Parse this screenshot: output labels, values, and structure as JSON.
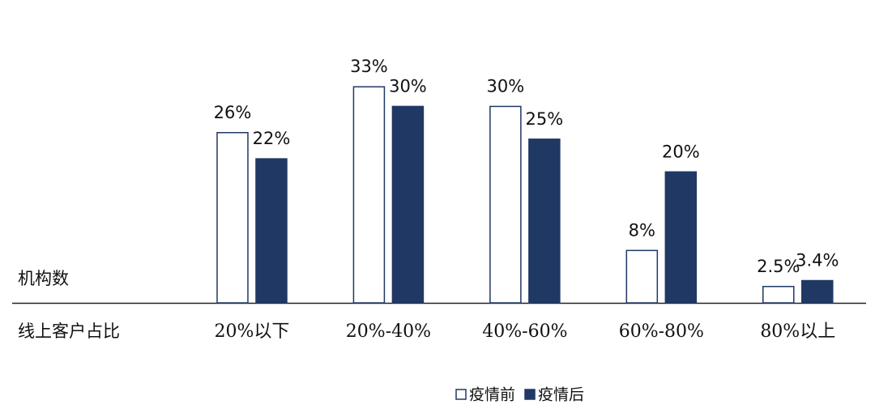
{
  "chart_data": {
    "type": "bar",
    "y_label": "机构数",
    "x_label": "线上客户占比",
    "categories": [
      "20%以下",
      "20%-40%",
      "40%-60%",
      "60%-80%",
      "80%以上"
    ],
    "series": [
      {
        "name": "疫情前",
        "color": "#ffffff",
        "values": [
          26,
          33,
          30,
          8,
          2.5
        ],
        "value_labels": [
          "26%",
          "33%",
          "30%",
          "8%",
          "2.5%"
        ]
      },
      {
        "name": "疫情后",
        "color": "#203864",
        "values": [
          22,
          30,
          25,
          20,
          3.4
        ],
        "value_labels": [
          "22%",
          "30%",
          "25%",
          "20%",
          "3.4%"
        ]
      }
    ],
    "border_color": "#203864",
    "ylim": [
      0,
      35
    ]
  }
}
